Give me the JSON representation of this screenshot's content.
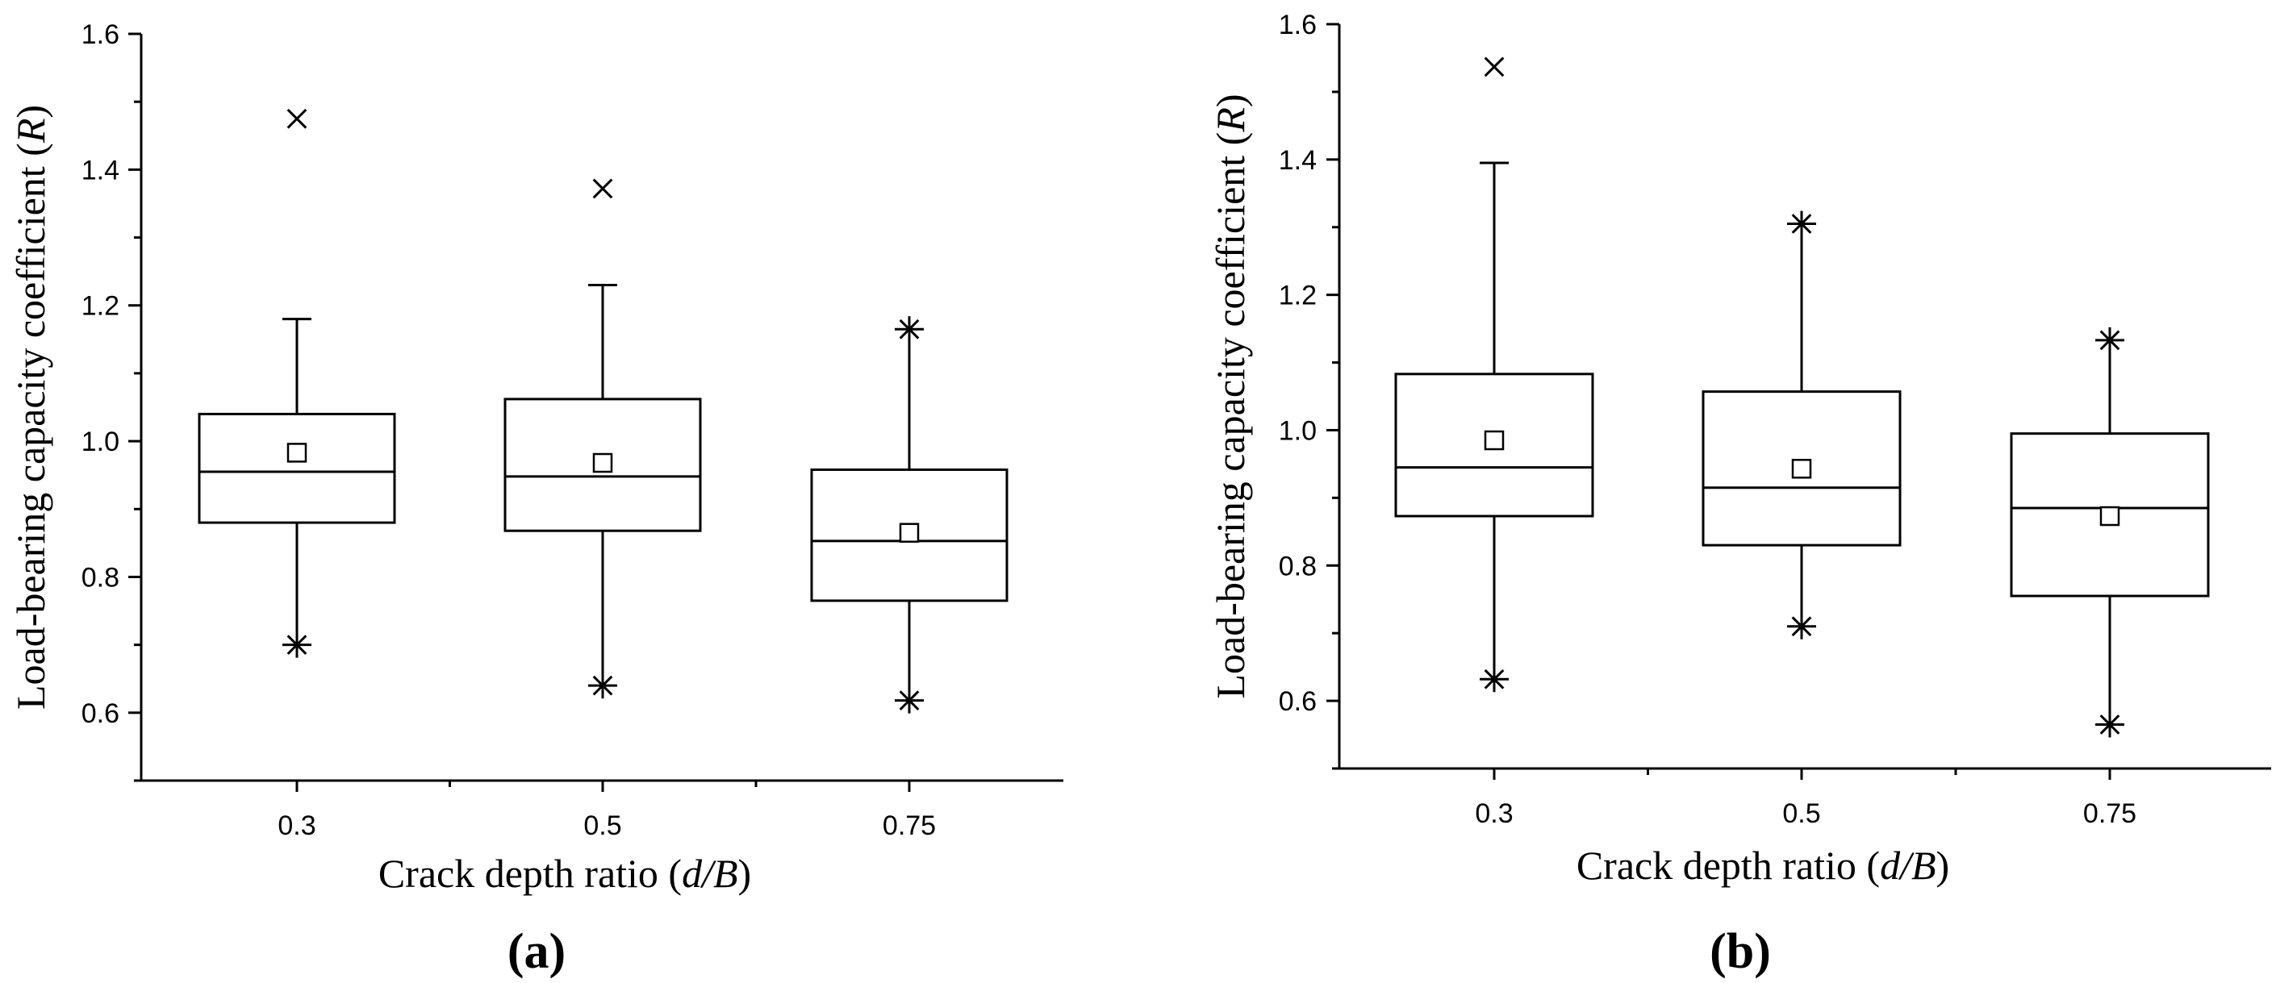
{
  "chart_data": [
    {
      "type": "box",
      "panel_label": "(a)",
      "xlabel_main": "Crack depth ratio (",
      "xlabel_italic": "d/B",
      "xlabel_end": ")",
      "ylabel_main": "Load-bearing capacity coefficient (",
      "ylabel_italic": "R",
      "ylabel_end": ")",
      "categories": [
        "0.3",
        "0.5",
        "0.75"
      ],
      "ylim": [
        0.5,
        1.6
      ],
      "yticks": [
        "0.6",
        "0.8",
        "1.0",
        "1.2",
        "1.4",
        "1.6"
      ],
      "boxes": [
        {
          "category": "0.3",
          "whisker_low": 0.7,
          "q1": 0.88,
          "median": 0.955,
          "q3": 1.04,
          "whisker_high": 1.18,
          "mean": 0.983,
          "min": 0.7,
          "max": 1.475
        },
        {
          "category": "0.5",
          "whisker_low": 0.64,
          "q1": 0.868,
          "median": 0.948,
          "q3": 1.062,
          "whisker_high": 1.23,
          "mean": 0.968,
          "min": 0.64,
          "max": 1.372
        },
        {
          "category": "0.75",
          "whisker_low": 0.618,
          "q1": 0.765,
          "median": 0.853,
          "q3": 0.958,
          "whisker_high": 1.165,
          "mean": 0.865,
          "min": 0.618,
          "max": 1.165
        }
      ]
    },
    {
      "type": "box",
      "panel_label": "(b)",
      "xlabel_main": "Crack depth ratio (",
      "xlabel_italic": "d/B",
      "xlabel_end": ")",
      "ylabel_main": "Load-bearing capacity coefficient (",
      "ylabel_italic": "R",
      "ylabel_end": ")",
      "categories": [
        "0.3",
        "0.5",
        "0.75"
      ],
      "ylim": [
        0.5,
        1.6
      ],
      "yticks": [
        "0.6",
        "0.8",
        "1.0",
        "1.2",
        "1.4",
        "1.6"
      ],
      "boxes": [
        {
          "category": "0.3",
          "whisker_low": 0.632,
          "q1": 0.873,
          "median": 0.945,
          "q3": 1.083,
          "whisker_high": 1.395,
          "mean": 0.985,
          "min": 0.632,
          "max": 1.537
        },
        {
          "category": "0.5",
          "whisker_low": 0.71,
          "q1": 0.83,
          "median": 0.915,
          "q3": 1.057,
          "whisker_high": 1.305,
          "mean": 0.943,
          "min": 0.71,
          "max": 1.305
        },
        {
          "category": "0.75",
          "whisker_low": 0.565,
          "q1": 0.755,
          "median": 0.885,
          "q3": 0.995,
          "whisker_high": 1.133,
          "mean": 0.873,
          "min": 0.565,
          "max": 1.133
        }
      ]
    }
  ]
}
